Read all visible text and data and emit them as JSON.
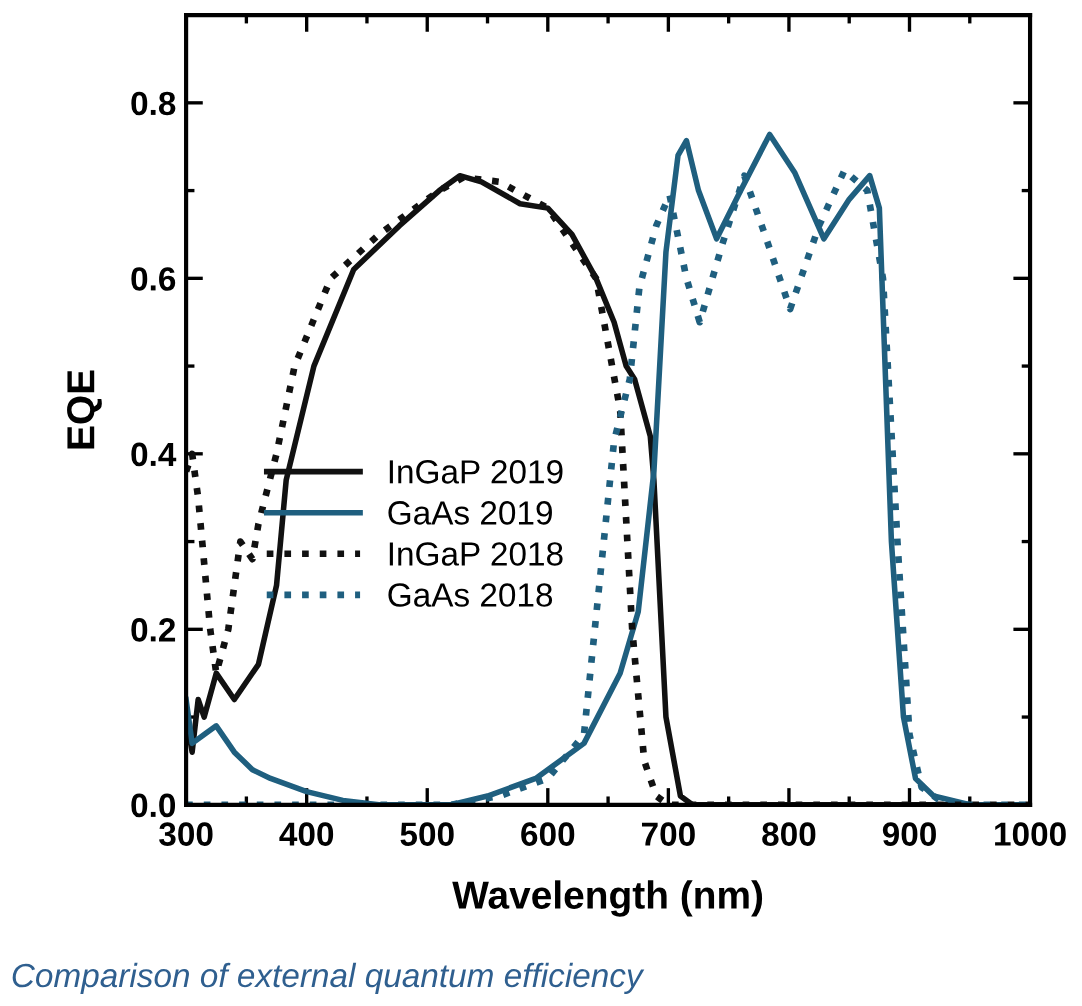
{
  "chart_data": {
    "type": "line",
    "xlabel": "Wavelength (nm)",
    "ylabel": "EQE",
    "xlim": [
      300,
      1000
    ],
    "xticks": [
      300,
      400,
      500,
      600,
      700,
      800,
      900,
      1000
    ],
    "ylim": [
      0,
      0.9
    ],
    "yticks": [
      {
        "value": 0,
        "label": "0.0"
      },
      0.2,
      0.4,
      0.6,
      0.8
    ],
    "grid": false,
    "legend": "left",
    "marker": "none",
    "annotations": [
      "Comparison of external quantum efficiency"
    ],
    "series": [
      {
        "name": "InGaP 2019",
        "color": "#111111",
        "line_style": "solid",
        "x": [
          300,
          305,
          310,
          315,
          325,
          340,
          360,
          375,
          383,
          406,
          439,
          477,
          510,
          527,
          545,
          577,
          600,
          620,
          640,
          655,
          665,
          672,
          685,
          688,
          698,
          710,
          720,
          750,
          800,
          900,
          1000
        ],
        "values": [
          0.1,
          0.06,
          0.12,
          0.1,
          0.15,
          0.12,
          0.16,
          0.25,
          0.37,
          0.5,
          0.61,
          0.66,
          0.7,
          0.717,
          0.71,
          0.685,
          0.68,
          0.65,
          0.6,
          0.55,
          0.5,
          0.485,
          0.42,
          0.37,
          0.1,
          0.01,
          0.0,
          0.0,
          0.0,
          0.0,
          0.0
        ]
      },
      {
        "name": "GaAs 2019",
        "color": "#1f5f7f",
        "line_style": "solid",
        "x": [
          300,
          305,
          315,
          325,
          340,
          355,
          370,
          400,
          430,
          460,
          520,
          550,
          590,
          630,
          660,
          675,
          688,
          698,
          708,
          715,
          725,
          740,
          760,
          784,
          805,
          829,
          850,
          867,
          875,
          885,
          895,
          905,
          920,
          950,
          1000
        ],
        "values": [
          0.12,
          0.07,
          0.08,
          0.09,
          0.06,
          0.04,
          0.03,
          0.015,
          0.005,
          0.0,
          0.0,
          0.01,
          0.03,
          0.07,
          0.15,
          0.22,
          0.38,
          0.63,
          0.74,
          0.757,
          0.7,
          0.645,
          0.7,
          0.764,
          0.72,
          0.645,
          0.69,
          0.717,
          0.68,
          0.3,
          0.1,
          0.03,
          0.01,
          0.0,
          0.0
        ]
      },
      {
        "name": "InGaP 2018",
        "color": "#111111",
        "line_style": "dotted",
        "x": [
          300,
          305,
          310,
          320,
          325,
          335,
          345,
          355,
          360,
          375,
          390,
          420,
          460,
          510,
          530,
          560,
          600,
          640,
          660,
          670,
          680,
          690,
          700,
          800,
          900,
          1000
        ],
        "values": [
          0.38,
          0.4,
          0.35,
          0.2,
          0.15,
          0.2,
          0.3,
          0.28,
          0.32,
          0.4,
          0.5,
          0.6,
          0.65,
          0.7,
          0.715,
          0.71,
          0.68,
          0.6,
          0.45,
          0.2,
          0.05,
          0.01,
          0.0,
          0.0,
          0.0,
          0.0
        ]
      },
      {
        "name": "GaAs 2018",
        "color": "#1f5f7f",
        "line_style": "dotted",
        "x": [
          300,
          400,
          450,
          520,
          560,
          600,
          630,
          655,
          668,
          676,
          690,
          701,
          715,
          726,
          745,
          763,
          780,
          801,
          825,
          846,
          865,
          878,
          890,
          900,
          910,
          930,
          1000
        ],
        "values": [
          0.0,
          0.0,
          0.0,
          0.0,
          0.01,
          0.03,
          0.08,
          0.415,
          0.485,
          0.59,
          0.66,
          0.695,
          0.6,
          0.55,
          0.64,
          0.717,
          0.65,
          0.565,
          0.66,
          0.723,
          0.7,
          0.6,
          0.3,
          0.08,
          0.02,
          0.0,
          0.0
        ]
      }
    ]
  }
}
